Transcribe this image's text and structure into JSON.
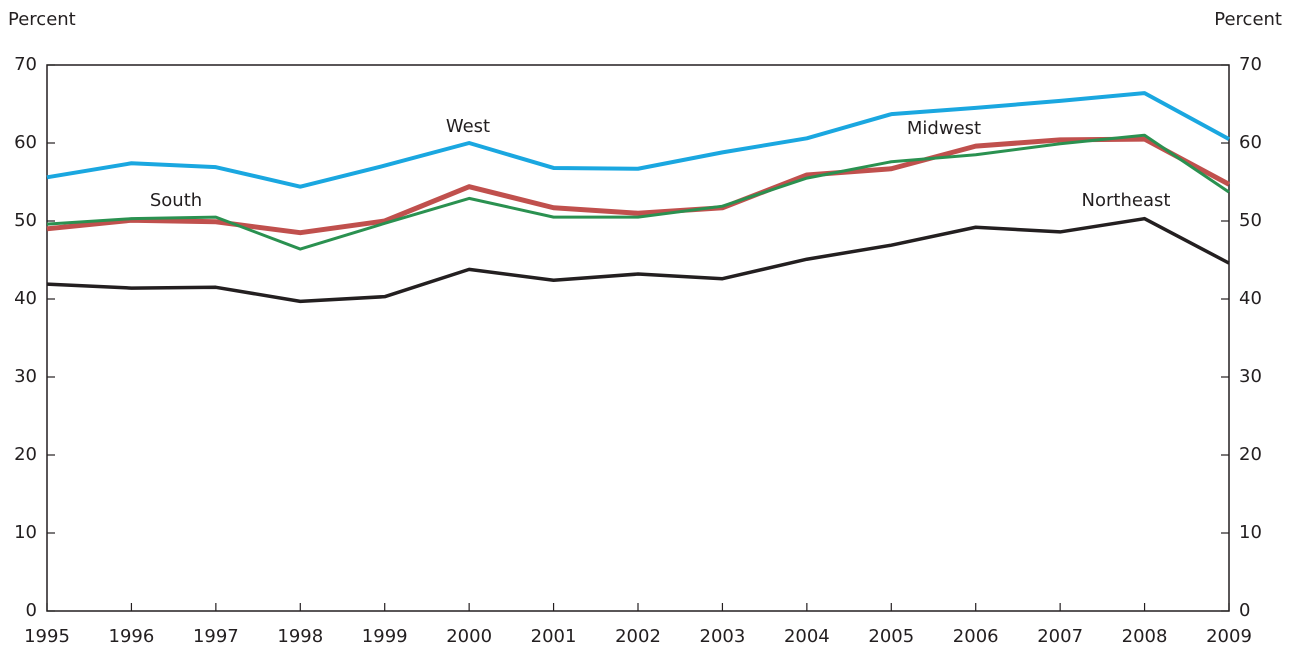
{
  "chart_data": {
    "type": "line",
    "y_label": "Percent",
    "y2_label": "Percent",
    "x": [
      1995,
      1996,
      1997,
      1998,
      1999,
      2000,
      2001,
      2002,
      2003,
      2004,
      2005,
      2006,
      2007,
      2008,
      2009
    ],
    "xlim": [
      1995,
      2009
    ],
    "xticks": [
      1995,
      1996,
      1997,
      1998,
      1999,
      2000,
      2001,
      2002,
      2003,
      2004,
      2005,
      2006,
      2007,
      2008,
      2009
    ],
    "ylim": [
      0,
      70
    ],
    "yticks": [
      0,
      10,
      20,
      30,
      40,
      50,
      60,
      70
    ],
    "y2lim": [
      0,
      70
    ],
    "y2ticks": [
      0,
      10,
      20,
      30,
      40,
      50,
      60,
      70
    ],
    "grid": false,
    "series": [
      {
        "name": "West",
        "color": "#1aa7e0",
        "values": [
          55.6,
          57.4,
          56.9,
          54.4,
          57.1,
          60.0,
          56.8,
          56.7,
          58.8,
          60.6,
          63.7,
          64.5,
          65.4,
          66.4,
          60.5
        ]
      },
      {
        "name": "Midwest",
        "color": "#c0504d",
        "values": [
          49.0,
          50.1,
          49.9,
          48.5,
          50.0,
          54.4,
          51.7,
          51.0,
          51.7,
          55.9,
          56.7,
          59.6,
          60.4,
          60.5,
          54.7
        ]
      },
      {
        "name": "South",
        "color": "#2a9150",
        "values": [
          49.6,
          50.3,
          50.5,
          46.4,
          49.7,
          52.9,
          50.5,
          50.5,
          51.9,
          55.5,
          57.6,
          58.5,
          59.9,
          61.0,
          53.7
        ]
      },
      {
        "name": "Northeast",
        "color": "#231f20",
        "values": [
          41.9,
          41.4,
          41.5,
          39.7,
          40.3,
          43.8,
          42.4,
          43.2,
          42.6,
          45.1,
          46.9,
          49.2,
          48.6,
          50.3,
          44.6
        ]
      }
    ]
  }
}
